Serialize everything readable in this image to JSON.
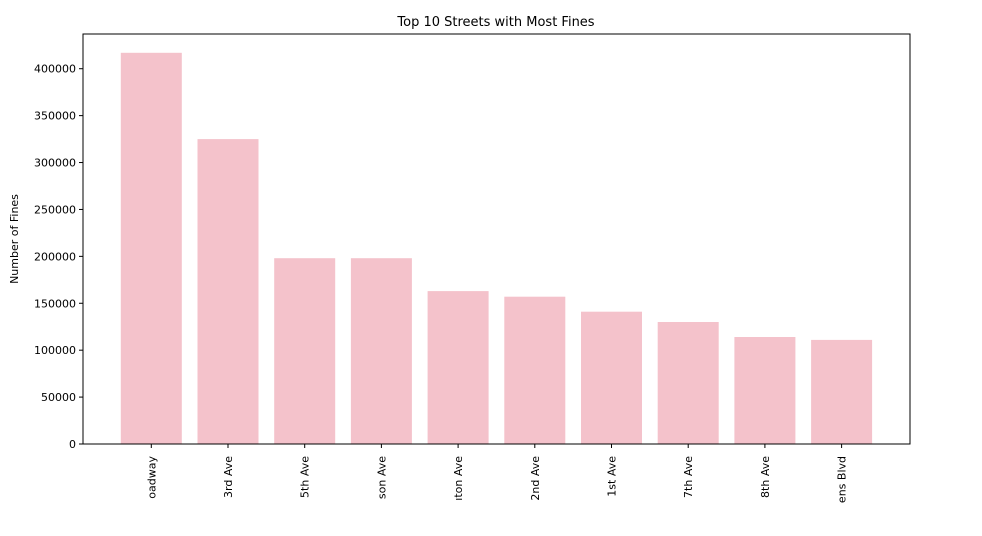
{
  "chart_data": {
    "type": "bar",
    "title": "Top 10 Streets with Most Fines",
    "xlabel": "",
    "ylabel": "Number of Fines",
    "categories": [
      "oadway",
      "3rd Ave",
      "5th Ave",
      "son Ave",
      "ıton Ave",
      "2nd Ave",
      "1st Ave",
      "7th Ave",
      "8th Ave",
      "ens Blvd"
    ],
    "values": [
      417000,
      325000,
      198000,
      198000,
      163000,
      157000,
      141000,
      130000,
      114000,
      111000
    ],
    "yticks": [
      0,
      50000,
      100000,
      150000,
      200000,
      250000,
      300000,
      350000,
      400000
    ],
    "ytick_labels": [
      "0",
      "50000",
      "100000",
      "150000",
      "200000",
      "250000",
      "300000",
      "350000",
      "400000"
    ],
    "ylim": [
      0,
      437000
    ],
    "bar_color": "#f4c2cb",
    "grid": false,
    "legend": false
  }
}
